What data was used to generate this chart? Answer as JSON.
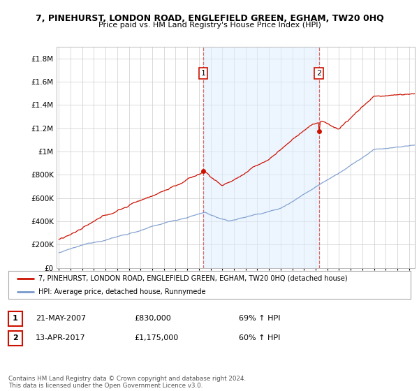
{
  "title": "7, PINEHURST, LONDON ROAD, ENGLEFIELD GREEN, EGHAM, TW20 0HQ",
  "subtitle": "Price paid vs. HM Land Registry's House Price Index (HPI)",
  "legend_line1": "7, PINEHURST, LONDON ROAD, ENGLEFIELD GREEN, EGHAM, TW20 0HQ (detached house)",
  "legend_line2": "HPI: Average price, detached house, Runnymede",
  "annotation1_label": "1",
  "annotation1_date": "21-MAY-2007",
  "annotation1_price": "£830,000",
  "annotation1_hpi": "69% ↑ HPI",
  "annotation2_label": "2",
  "annotation2_date": "13-APR-2017",
  "annotation2_price": "£1,175,000",
  "annotation2_hpi": "60% ↑ HPI",
  "footer": "Contains HM Land Registry data © Crown copyright and database right 2024.\nThis data is licensed under the Open Government Licence v3.0.",
  "sale1_year": 2007.38,
  "sale1_value": 830000,
  "sale2_year": 2017.28,
  "sale2_value": 1175000,
  "hpi_color": "#7799cc",
  "price_color": "#cc1100",
  "vline_color": "#cc1100",
  "vline_alpha": 0.6,
  "shading_color": "#ddeeff",
  "shading_alpha": 0.5,
  "ylim_min": 0,
  "ylim_max": 1900000,
  "background_color": "#ffffff",
  "plot_bg_color": "#ffffff",
  "grid_color": "#cccccc"
}
